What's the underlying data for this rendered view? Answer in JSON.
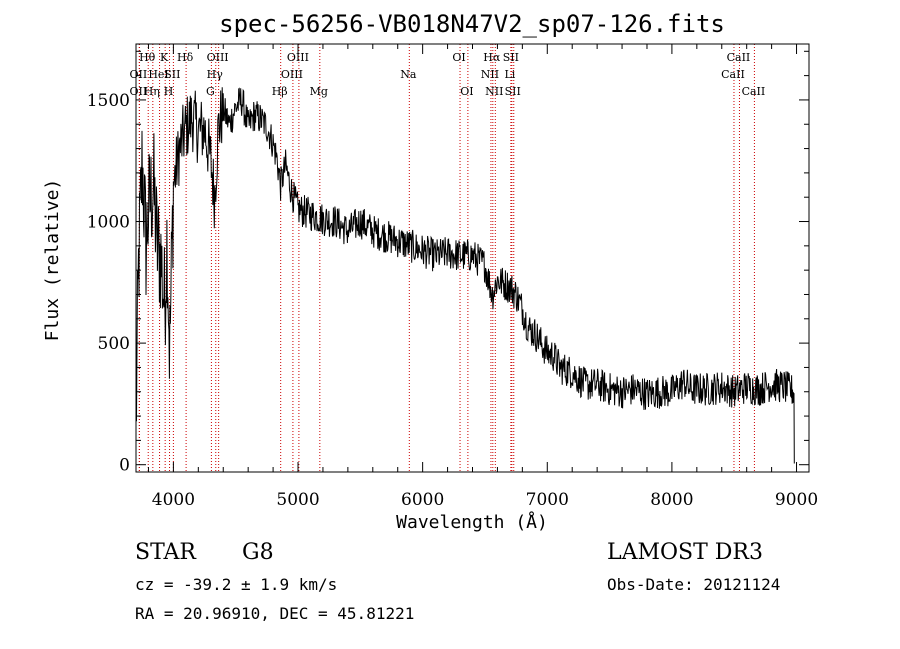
{
  "chart_data": {
    "type": "line",
    "title": "spec-56256-VB018N47V2_sp07-126.fits",
    "xlabel": "Wavelength (Å)",
    "ylabel": "Flux (relative)",
    "xlim": [
      3700,
      9100
    ],
    "ylim": [
      -30,
      1730
    ],
    "xticks": [
      4000,
      5000,
      6000,
      7000,
      8000,
      9000
    ],
    "yticks": [
      0,
      500,
      1000,
      1500
    ],
    "anchors": [
      [
        3700,
        150
      ],
      [
        3720,
        800
      ],
      [
        3750,
        1250
      ],
      [
        3780,
        900
      ],
      [
        3800,
        1050
      ],
      [
        3840,
        1150
      ],
      [
        3870,
        900
      ],
      [
        3900,
        850
      ],
      [
        3930,
        650
      ],
      [
        3950,
        950
      ],
      [
        3970,
        450
      ],
      [
        4000,
        1150
      ],
      [
        4050,
        1300
      ],
      [
        4100,
        1380
      ],
      [
        4150,
        1430
      ],
      [
        4200,
        1370
      ],
      [
        4250,
        1380
      ],
      [
        4300,
        1250
      ],
      [
        4330,
        1100
      ],
      [
        4360,
        1380
      ],
      [
        4400,
        1460
      ],
      [
        4450,
        1400
      ],
      [
        4500,
        1470
      ],
      [
        4550,
        1500
      ],
      [
        4600,
        1390
      ],
      [
        4650,
        1440
      ],
      [
        4700,
        1420
      ],
      [
        4750,
        1390
      ],
      [
        4800,
        1320
      ],
      [
        4830,
        1260
      ],
      [
        4860,
        1150
      ],
      [
        4900,
        1230
      ],
      [
        4950,
        1120
      ],
      [
        5000,
        1050
      ],
      [
        5100,
        1030
      ],
      [
        5200,
        1010
      ],
      [
        5300,
        1000
      ],
      [
        5400,
        960
      ],
      [
        5500,
        1000
      ],
      [
        5600,
        960
      ],
      [
        5700,
        940
      ],
      [
        5800,
        920
      ],
      [
        5900,
        900
      ],
      [
        6000,
        880
      ],
      [
        6100,
        860
      ],
      [
        6200,
        870
      ],
      [
        6300,
        860
      ],
      [
        6400,
        860
      ],
      [
        6500,
        820
      ],
      [
        6560,
        700
      ],
      [
        6600,
        760
      ],
      [
        6700,
        730
      ],
      [
        6750,
        700
      ],
      [
        6800,
        640
      ],
      [
        6850,
        560
      ],
      [
        6900,
        540
      ],
      [
        6950,
        500
      ],
      [
        7000,
        460
      ],
      [
        7050,
        450
      ],
      [
        7100,
        400
      ],
      [
        7200,
        380
      ],
      [
        7300,
        330
      ],
      [
        7400,
        330
      ],
      [
        7500,
        310
      ],
      [
        7600,
        300
      ],
      [
        7700,
        310
      ],
      [
        7800,
        290
      ],
      [
        7900,
        300
      ],
      [
        8000,
        300
      ],
      [
        8100,
        340
      ],
      [
        8150,
        310
      ],
      [
        8300,
        310
      ],
      [
        8400,
        320
      ],
      [
        8500,
        300
      ],
      [
        8600,
        320
      ],
      [
        8700,
        310
      ],
      [
        8800,
        330
      ],
      [
        8900,
        320
      ],
      [
        8980,
        300
      ]
    ],
    "noise_amplitude": 70,
    "spectral_lines": [
      {
        "label": "Hθ",
        "wavelength": 3798,
        "row": 0
      },
      {
        "label": "OII",
        "wavelength": 3727,
        "row": 1
      },
      {
        "label": "OII",
        "wavelength": 3727,
        "row": 2
      },
      {
        "label": "Hη",
        "wavelength": 3835,
        "row": 2
      },
      {
        "label": "HeI",
        "wavelength": 3889,
        "row": 1
      },
      {
        "label": "K",
        "wavelength": 3934,
        "row": 0
      },
      {
        "label": "SII",
        "wavelength": 4000,
        "row": 1
      },
      {
        "label": "H",
        "wavelength": 3969,
        "row": 2
      },
      {
        "label": "Hδ",
        "wavelength": 4102,
        "row": 0
      },
      {
        "label": "OIII",
        "wavelength": 4363,
        "row": 0
      },
      {
        "label": "Hγ",
        "wavelength": 4340,
        "row": 1
      },
      {
        "label": "G",
        "wavelength": 4305,
        "row": 2
      },
      {
        "label": "OIII",
        "wavelength": 5007,
        "row": 0
      },
      {
        "label": "OIII",
        "wavelength": 4959,
        "row": 1
      },
      {
        "label": "Hβ",
        "wavelength": 4861,
        "row": 2
      },
      {
        "label": "Mg",
        "wavelength": 5175,
        "row": 2
      },
      {
        "label": "Na",
        "wavelength": 5893,
        "row": 1
      },
      {
        "label": "OI",
        "wavelength": 6300,
        "row": 0
      },
      {
        "label": "OI",
        "wavelength": 6363,
        "row": 2
      },
      {
        "label": "Hα",
        "wavelength": 6563,
        "row": 0
      },
      {
        "label": "SII",
        "wavelength": 6716,
        "row": 0
      },
      {
        "label": "NII",
        "wavelength": 6548,
        "row": 1
      },
      {
        "label": "Li",
        "wavelength": 6708,
        "row": 1
      },
      {
        "label": "NII",
        "wavelength": 6583,
        "row": 2
      },
      {
        "label": "SII",
        "wavelength": 6731,
        "row": 2
      },
      {
        "label": "CaII",
        "wavelength": 8542,
        "row": 0
      },
      {
        "label": "CaII",
        "wavelength": 8498,
        "row": 1
      },
      {
        "label": "CaII",
        "wavelength": 8662,
        "row": 2
      }
    ]
  },
  "info": {
    "object_type": "STAR",
    "subclass": "G8",
    "survey": "LAMOST DR3",
    "redshift_text": "cz = -39.2 ± 1.9 km/s",
    "obs_date": "Obs-Date: 20121124",
    "coords": "RA =  20.96910, DEC =  45.81221"
  },
  "colors": {
    "spectrum": "#000000",
    "line_markers": "#cc0000"
  }
}
